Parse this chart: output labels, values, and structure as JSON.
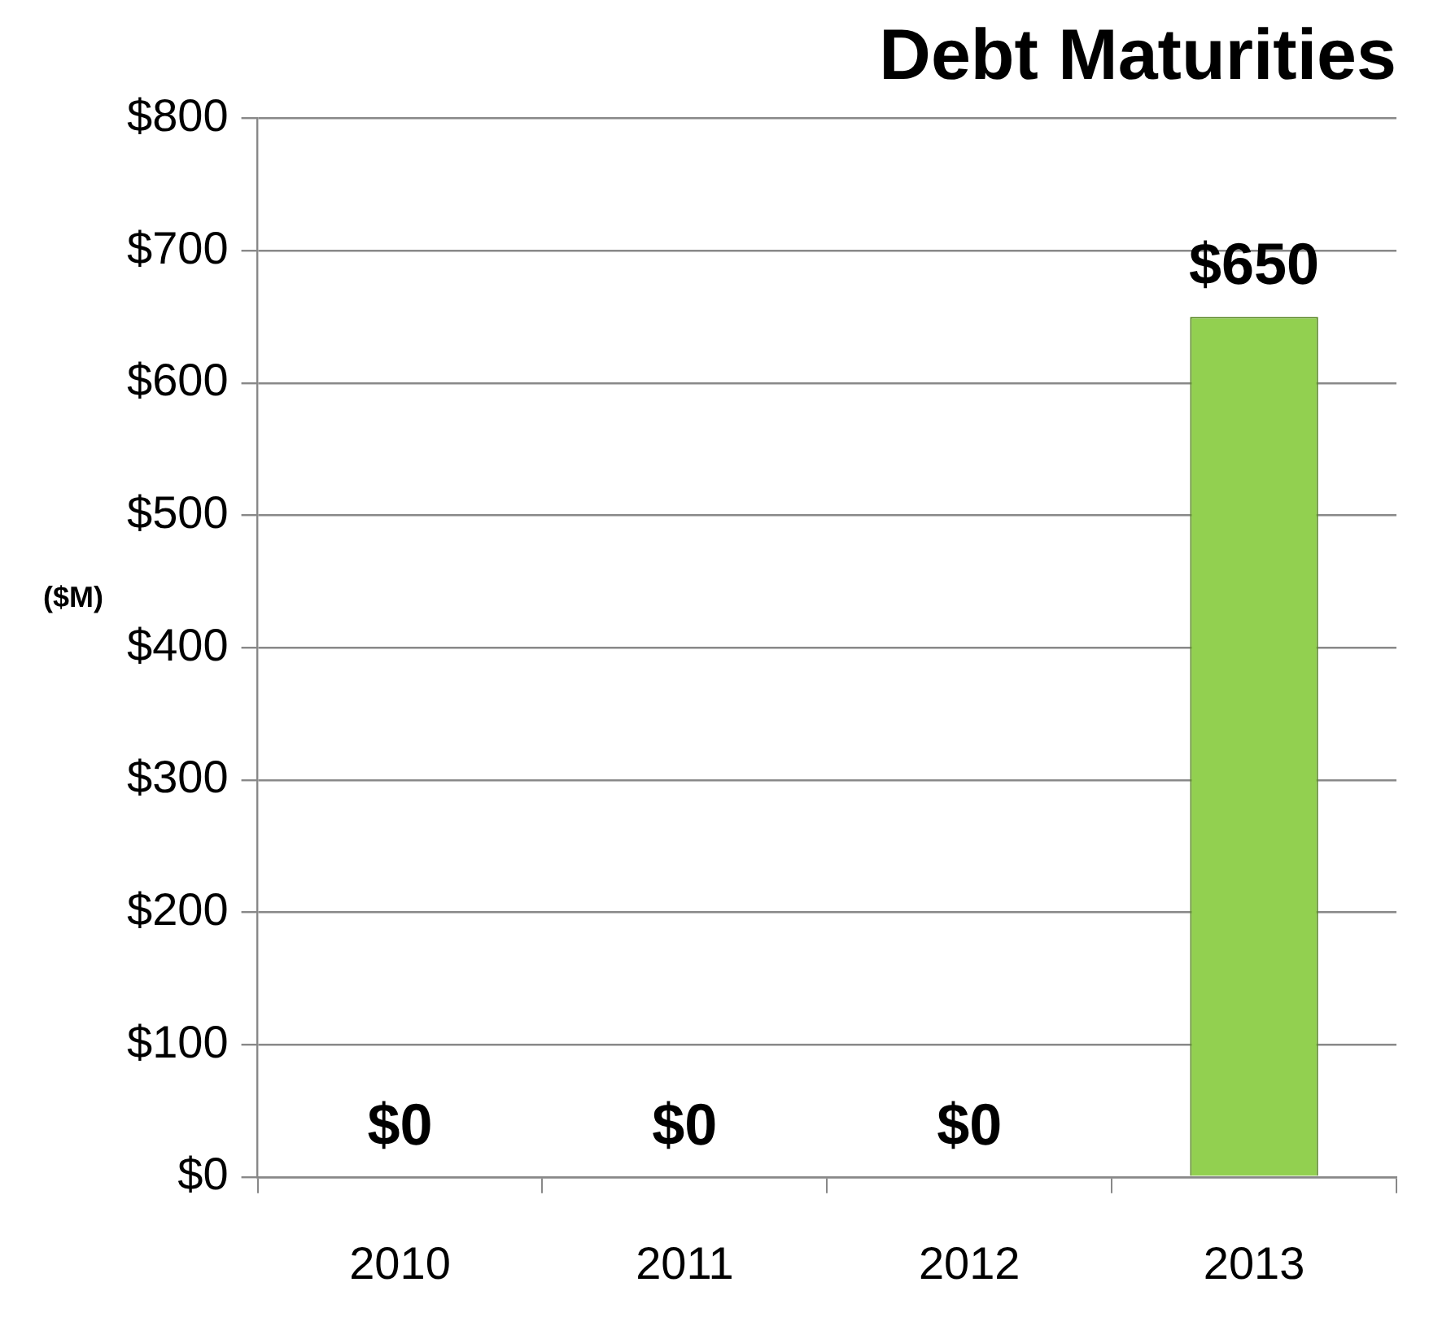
{
  "chart_data": {
    "type": "bar",
    "title": "Debt Maturities",
    "ylabel": "($M)",
    "categories": [
      "2010",
      "2011",
      "2012",
      "2013"
    ],
    "values": [
      0,
      0,
      0,
      650
    ],
    "color": "#92d050",
    "value_labels": [
      "$0",
      "$0",
      "$0",
      "$650"
    ],
    "ylim": [
      0,
      800
    ],
    "yticks": [
      {
        "value": 0,
        "label": "$0"
      },
      {
        "value": 100,
        "label": "$100"
      },
      {
        "value": 200,
        "label": "$200"
      },
      {
        "value": 300,
        "label": "$300"
      },
      {
        "value": 400,
        "label": "$400"
      },
      {
        "value": 500,
        "label": "$500"
      },
      {
        "value": 600,
        "label": "$600"
      },
      {
        "value": 700,
        "label": "$700"
      },
      {
        "value": 800,
        "label": "$800"
      }
    ],
    "grid": "y",
    "legend": false
  }
}
